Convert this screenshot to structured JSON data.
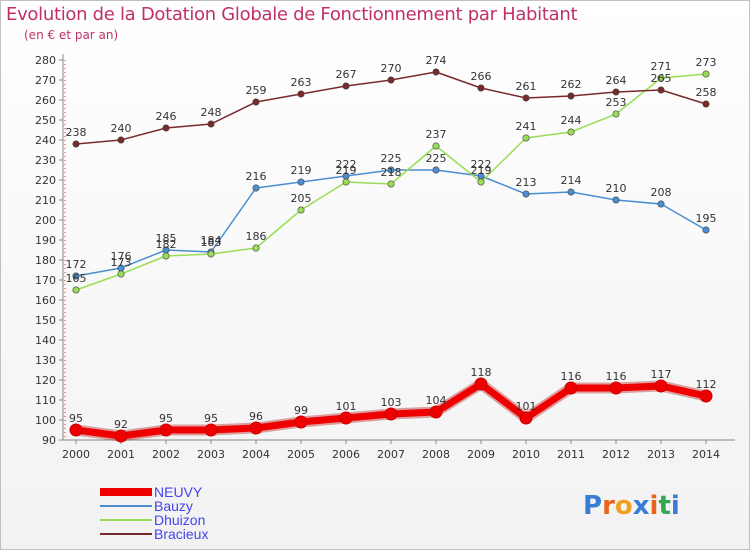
{
  "page": {
    "title": "Evolution de la Dotation Globale de Fonctionnement par Habitant",
    "subtitle": "(en € et par an)"
  },
  "logo": {
    "text": "Proxiti",
    "letter_colors": [
      "#3a7bd5",
      "#e8641e",
      "#f0a020",
      "#3a7bd5",
      "#e8641e",
      "#2fa84f",
      "#3a7bd5"
    ]
  },
  "chart_data": {
    "type": "line",
    "title": "Evolution de la Dotation Globale de Fonctionnement par Habitant",
    "subtitle": "(en € et par an)",
    "xlabel": "",
    "ylabel": "",
    "x": [
      2000,
      2001,
      2002,
      2003,
      2004,
      2005,
      2006,
      2007,
      2008,
      2009,
      2010,
      2011,
      2012,
      2013,
      2014
    ],
    "ylim": [
      90,
      280
    ],
    "yticks": [
      90,
      100,
      110,
      120,
      130,
      140,
      150,
      160,
      170,
      180,
      190,
      200,
      210,
      220,
      230,
      240,
      250,
      260,
      270,
      280
    ],
    "grid": false,
    "legend_position": "bottom-left",
    "series": [
      {
        "name": "NEUVY",
        "color": "#ee0000",
        "emphasis": true,
        "values": [
          95,
          92,
          95,
          95,
          96,
          99,
          101,
          103,
          104,
          118,
          101,
          116,
          116,
          117,
          112
        ]
      },
      {
        "name": "Bauzy",
        "color": "#4a8fd0",
        "values": [
          172,
          176,
          185,
          184,
          216,
          219,
          222,
          225,
          225,
          222,
          213,
          214,
          210,
          208,
          195
        ]
      },
      {
        "name": "Dhuizon",
        "color": "#99dd55",
        "values": [
          165,
          173,
          182,
          183,
          186,
          205,
          219,
          218,
          237,
          219,
          241,
          244,
          253,
          271,
          273
        ]
      },
      {
        "name": "Bracieux",
        "color": "#7a2a2a",
        "values": [
          238,
          240,
          246,
          248,
          259,
          263,
          267,
          270,
          274,
          266,
          261,
          262,
          264,
          265,
          258
        ]
      }
    ]
  }
}
